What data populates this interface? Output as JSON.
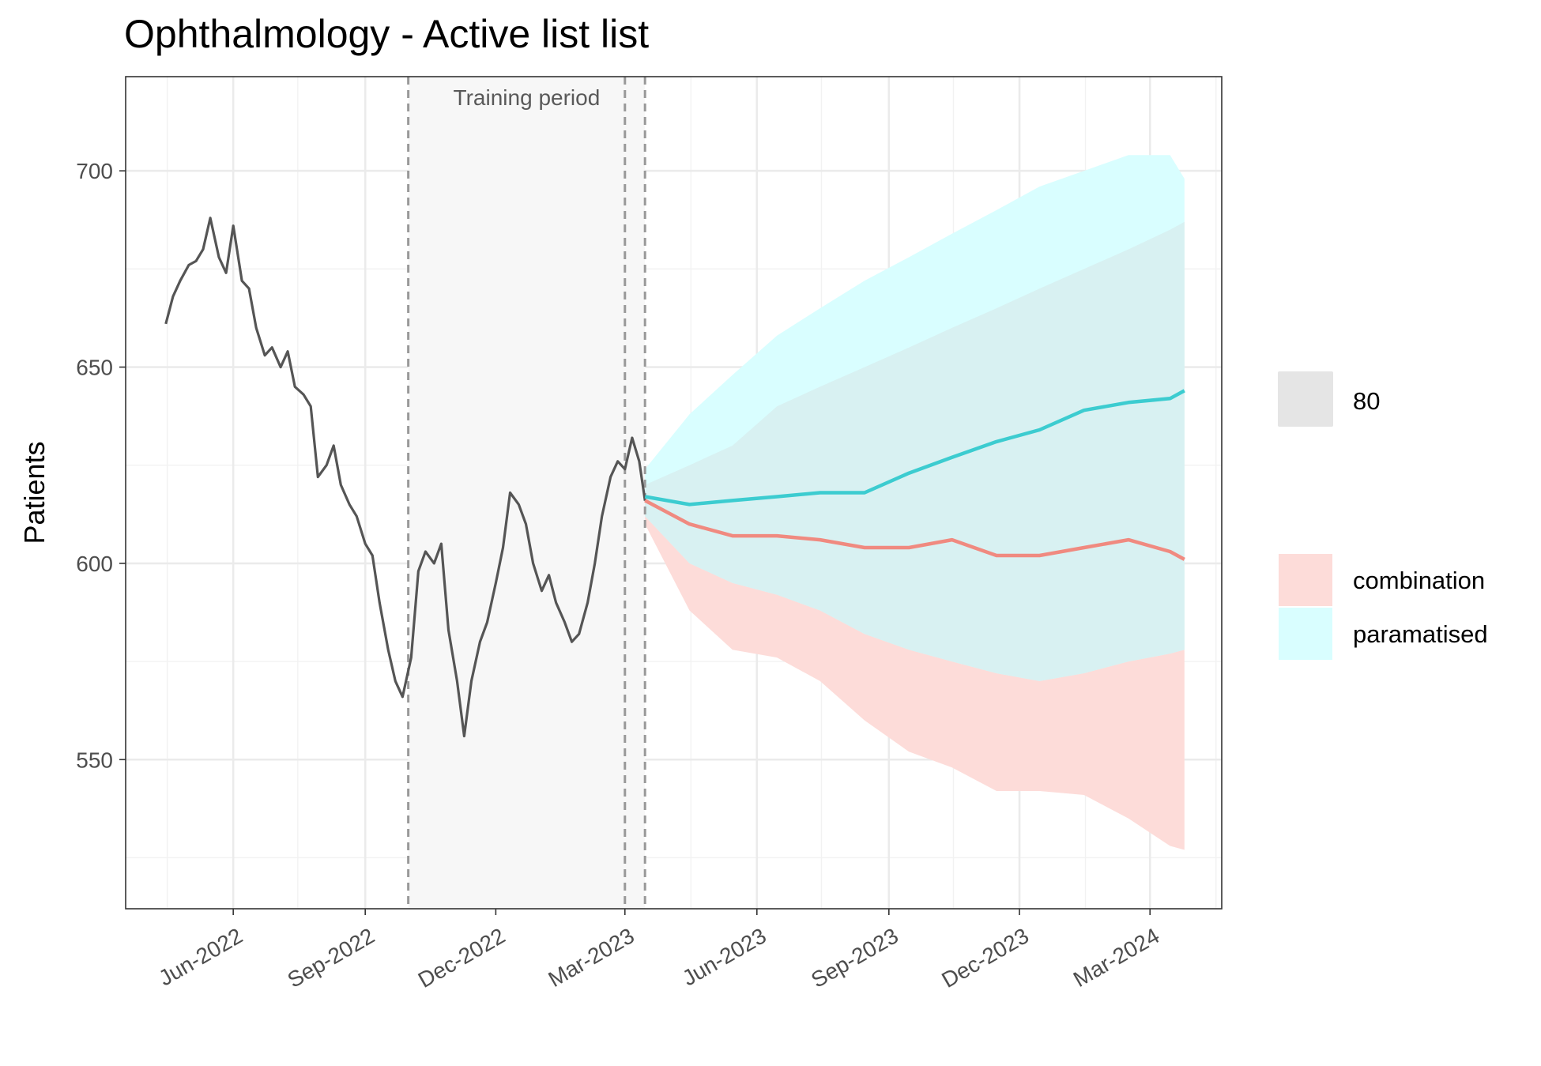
{
  "chart_data": {
    "type": "line",
    "title": "Ophthalmology - Active list list",
    "xlabel": "",
    "ylabel": "Patients",
    "x_tick_labels": [
      "Jun-2022",
      "Sep-2022",
      "Dec-2022",
      "Mar-2023",
      "Jun-2023",
      "Sep-2023",
      "Dec-2023",
      "Mar-2024"
    ],
    "y_ticks": [
      550,
      600,
      650,
      700
    ],
    "xlim": [
      "2022-03-18",
      "2024-04-20"
    ],
    "ylim": [
      512,
      724
    ],
    "grid": true,
    "annotations": [
      {
        "text": "Training period",
        "x_start": "2022-10-01",
        "x_end": "2023-03-15"
      }
    ],
    "vlines": [
      "2022-10-01",
      "2023-03-01",
      "2023-03-15"
    ],
    "legend": {
      "position": "right",
      "interval_title": "80",
      "entries": [
        "combination",
        "paramatised"
      ]
    },
    "colors": {
      "actual": "#555555",
      "combination": "#F08A80",
      "paramatised": "#3CCCD0",
      "combination_band": "#FDDCD9",
      "paramatised_band": "#D9FEFF",
      "overlap_band": "#D8F1F2",
      "training_shade": "#F7F7F7"
    },
    "series": [
      {
        "role": "actual",
        "x": [
          "2022-04-15",
          "2022-04-20",
          "2022-04-25",
          "2022-05-01",
          "2022-05-06",
          "2022-05-11",
          "2022-05-16",
          "2022-05-22",
          "2022-05-27",
          "2022-06-01",
          "2022-06-07",
          "2022-06-12",
          "2022-06-17",
          "2022-06-23",
          "2022-06-28",
          "2022-07-04",
          "2022-07-09",
          "2022-07-14",
          "2022-07-20",
          "2022-07-25",
          "2022-07-30",
          "2022-08-05",
          "2022-08-10",
          "2022-08-15",
          "2022-08-21",
          "2022-08-26",
          "2022-09-01",
          "2022-09-06",
          "2022-09-11",
          "2022-09-17",
          "2022-09-22",
          "2022-09-27",
          "2022-10-03",
          "2022-10-08",
          "2022-10-13",
          "2022-10-19",
          "2022-10-24",
          "2022-10-29",
          "2022-11-04",
          "2022-11-09",
          "2022-11-14",
          "2022-11-20",
          "2022-11-25",
          "2022-12-01",
          "2022-12-06",
          "2022-12-11",
          "2022-12-17",
          "2022-12-22",
          "2022-12-27",
          "2023-01-02",
          "2023-01-07",
          "2023-01-12",
          "2023-01-18",
          "2023-01-23",
          "2023-01-28",
          "2023-02-03",
          "2023-02-08",
          "2023-02-13",
          "2023-02-19",
          "2023-02-24",
          "2023-03-01",
          "2023-03-06",
          "2023-03-11",
          "2023-03-15"
        ],
        "values": [
          661,
          668,
          672,
          676,
          677,
          680,
          688,
          678,
          674,
          686,
          672,
          670,
          660,
          653,
          655,
          650,
          654,
          645,
          643,
          640,
          622,
          625,
          630,
          620,
          615,
          612,
          605,
          602,
          590,
          578,
          570,
          566,
          576,
          598,
          603,
          600,
          605,
          583,
          570,
          556,
          570,
          580,
          585,
          595,
          604,
          618,
          615,
          610,
          600,
          593,
          597,
          590,
          585,
          580,
          582,
          590,
          600,
          612,
          622,
          626,
          624,
          632,
          626,
          616
        ]
      },
      {
        "name": "combination",
        "x": [
          "2023-03-15",
          "2023-04-15",
          "2023-05-15",
          "2023-06-15",
          "2023-07-15",
          "2023-08-15",
          "2023-09-15",
          "2023-10-15",
          "2023-11-15",
          "2023-12-15",
          "2024-01-15",
          "2024-02-15",
          "2024-03-15",
          "2024-03-25"
        ],
        "values": [
          616,
          610,
          607,
          607,
          606,
          604,
          604,
          606,
          602,
          602,
          604,
          606,
          603,
          601
        ],
        "lower": [
          610,
          588,
          578,
          576,
          570,
          560,
          552,
          548,
          542,
          542,
          541,
          535,
          528,
          527
        ],
        "upper": [
          620,
          625,
          630,
          640,
          645,
          650,
          655,
          660,
          665,
          670,
          675,
          680,
          685,
          687
        ]
      },
      {
        "name": "paramatised",
        "x": [
          "2023-03-15",
          "2023-04-15",
          "2023-05-15",
          "2023-06-15",
          "2023-07-15",
          "2023-08-15",
          "2023-09-15",
          "2023-10-15",
          "2023-11-15",
          "2023-12-15",
          "2024-01-15",
          "2024-02-15",
          "2024-03-15",
          "2024-03-25"
        ],
        "values": [
          617,
          615,
          616,
          617,
          618,
          618,
          623,
          627,
          631,
          634,
          639,
          641,
          642,
          644
        ],
        "lower": [
          612,
          600,
          595,
          592,
          588,
          582,
          578,
          575,
          572,
          570,
          572,
          575,
          577,
          578
        ],
        "upper": [
          624,
          638,
          648,
          658,
          665,
          672,
          678,
          684,
          690,
          696,
          700,
          704,
          704,
          698
        ]
      }
    ]
  }
}
